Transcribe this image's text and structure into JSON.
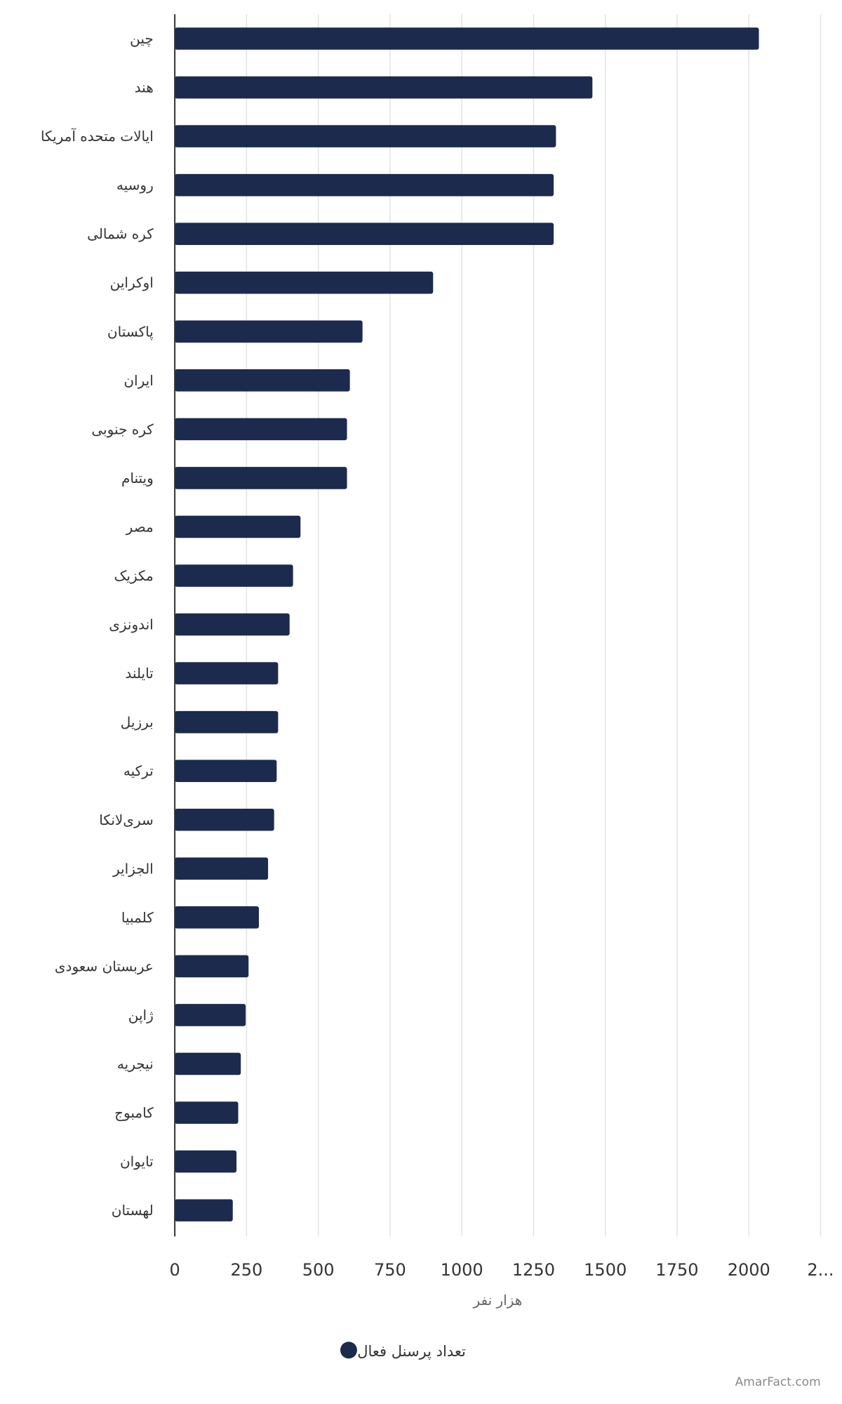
{
  "chart_data": {
    "type": "bar",
    "orientation": "horizontal",
    "categories": [
      "چین",
      "هند",
      "ایالات متحده آمریکا",
      "روسیه",
      "کره شمالی",
      "اوکراین",
      "پاکستان",
      "ایران",
      "کره جنوبی",
      "ویتنام",
      "مصر",
      "مکزیک",
      "اندونزی",
      "تایلند",
      "برزیل",
      "ترکیه",
      "سری‌لانکا",
      "الجزایر",
      "کلمبیا",
      "عربستان سعودی",
      "ژاپن",
      "نیجریه",
      "کامبوج",
      "تایوان",
      "لهستان"
    ],
    "series": [
      {
        "name": "تعداد پرسنل فعال",
        "color": "#1c2a4e",
        "values": [
          2035,
          1455,
          1328,
          1320,
          1320,
          900,
          654,
          610,
          600,
          600,
          438,
          412,
          400,
          360,
          360,
          355,
          346,
          325,
          293,
          257,
          247,
          230,
          221,
          215,
          202
        ]
      }
    ],
    "xlabel": "هزار نفر",
    "ylabel": "",
    "xlim": [
      0,
      2250
    ],
    "x_ticks": [
      "0",
      "250",
      "500",
      "750",
      "1000",
      "1250",
      "1500",
      "1750",
      "2000",
      "2..."
    ],
    "grid": true,
    "legend": {
      "position": "bottom"
    }
  },
  "watermark": "AmarFact.com"
}
